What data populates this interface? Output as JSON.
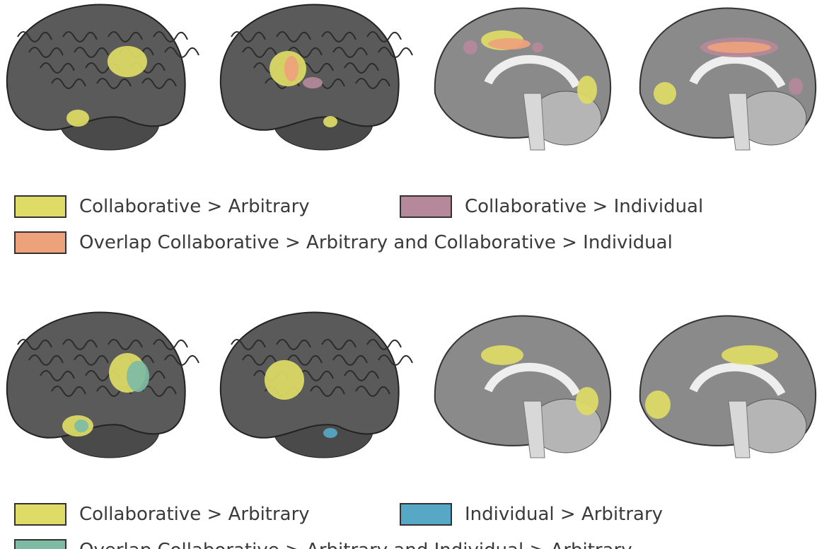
{
  "panels": [
    {
      "legend": [
        {
          "label": "Collaborative > Arbitrary",
          "color": "#dedc66"
        },
        {
          "label": "Collaborative > Individual",
          "color": "#b5899a"
        },
        {
          "label": "Overlap Collaborative > Arbitrary and Collaborative > Individual",
          "color": "#eea27c"
        }
      ]
    },
    {
      "legend": [
        {
          "label": "Collaborative > Arbitrary",
          "color": "#dedc66"
        },
        {
          "label": "Individual > Arbitrary",
          "color": "#56a8c6"
        },
        {
          "label": "Overlap Collaborative > Arbitrary and Individual > Arbitrary",
          "color": "#7dbba4"
        }
      ]
    }
  ]
}
